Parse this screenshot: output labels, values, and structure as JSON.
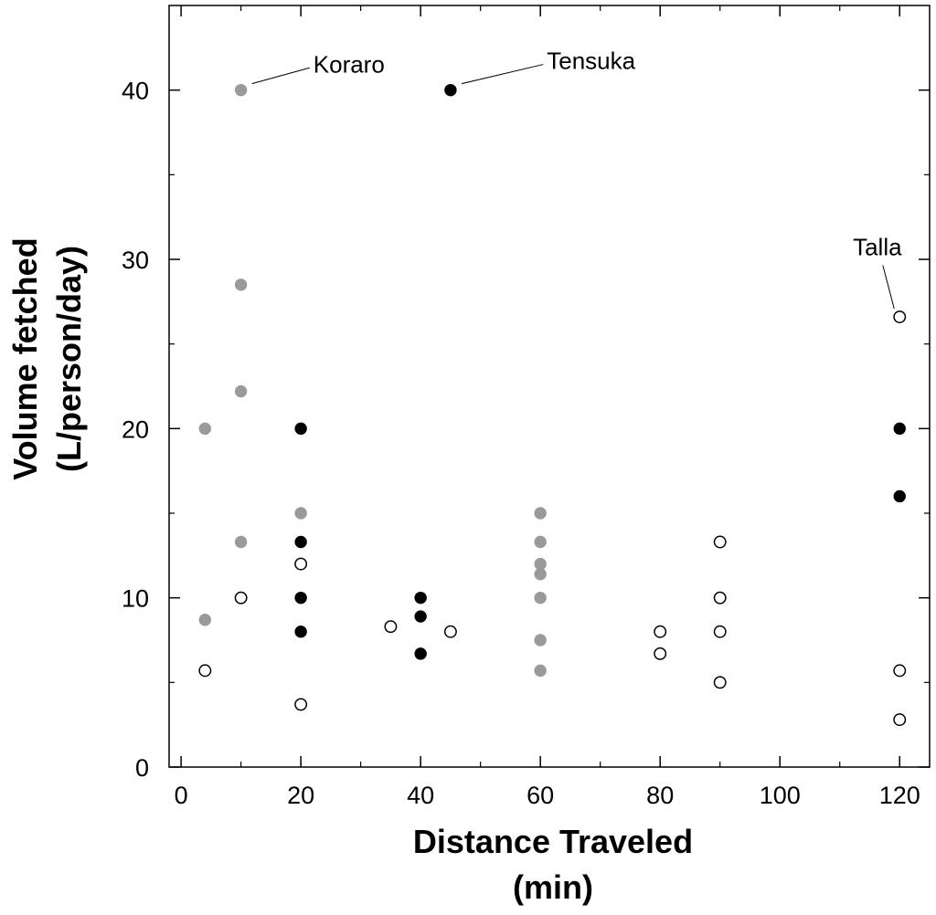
{
  "chart_data": {
    "type": "scatter",
    "title": "",
    "xlabel": "Distance Traveled",
    "xlabel_unit": "(min)",
    "ylabel": "Volume fetched",
    "ylabel_unit": "(L/person/day)",
    "xlim": [
      -2,
      125
    ],
    "ylim": [
      0,
      45
    ],
    "xticks": [
      0,
      20,
      40,
      60,
      80,
      100,
      120
    ],
    "yticks": [
      0,
      10,
      20,
      30,
      40
    ],
    "grid": false,
    "legend": "none",
    "series": [
      {
        "style": "gray-filled",
        "color": "#9a9a9a",
        "points": [
          [
            4,
            20
          ],
          [
            4,
            8.7
          ],
          [
            10,
            40
          ],
          [
            10,
            28.5
          ],
          [
            10,
            22.2
          ],
          [
            10,
            13.3
          ],
          [
            20,
            15
          ],
          [
            60,
            15
          ],
          [
            60,
            13.3
          ],
          [
            60,
            12
          ],
          [
            60,
            11.4
          ],
          [
            60,
            10
          ],
          [
            60,
            7.5
          ],
          [
            60,
            5.7
          ]
        ]
      },
      {
        "style": "black-filled",
        "color": "#000000",
        "points": [
          [
            20,
            20
          ],
          [
            20,
            13.3
          ],
          [
            20,
            10
          ],
          [
            20,
            8
          ],
          [
            40,
            10
          ],
          [
            40,
            8.9
          ],
          [
            40,
            6.7
          ],
          [
            45,
            40
          ],
          [
            120,
            20
          ],
          [
            120,
            16
          ]
        ]
      },
      {
        "style": "open",
        "color": "#000000",
        "points": [
          [
            4,
            5.7
          ],
          [
            10,
            10
          ],
          [
            20,
            12
          ],
          [
            20,
            3.7
          ],
          [
            35,
            8.3
          ],
          [
            45,
            8
          ],
          [
            80,
            8
          ],
          [
            80,
            6.7
          ],
          [
            90,
            13.3
          ],
          [
            90,
            10
          ],
          [
            90,
            8
          ],
          [
            90,
            5
          ],
          [
            120,
            26.6
          ],
          [
            120,
            5.7
          ],
          [
            120,
            2.8
          ]
        ]
      }
    ],
    "annotations": [
      {
        "text": "Koraro",
        "point": [
          10,
          40
        ],
        "text_pos": [
          23,
          41.1
        ]
      },
      {
        "text": "Tensuka",
        "point": [
          45,
          40
        ],
        "text_pos": [
          62,
          41.3
        ]
      },
      {
        "text": "Talla",
        "point": [
          120,
          26.6
        ],
        "text_pos": [
          112,
          30.3
        ]
      }
    ]
  }
}
